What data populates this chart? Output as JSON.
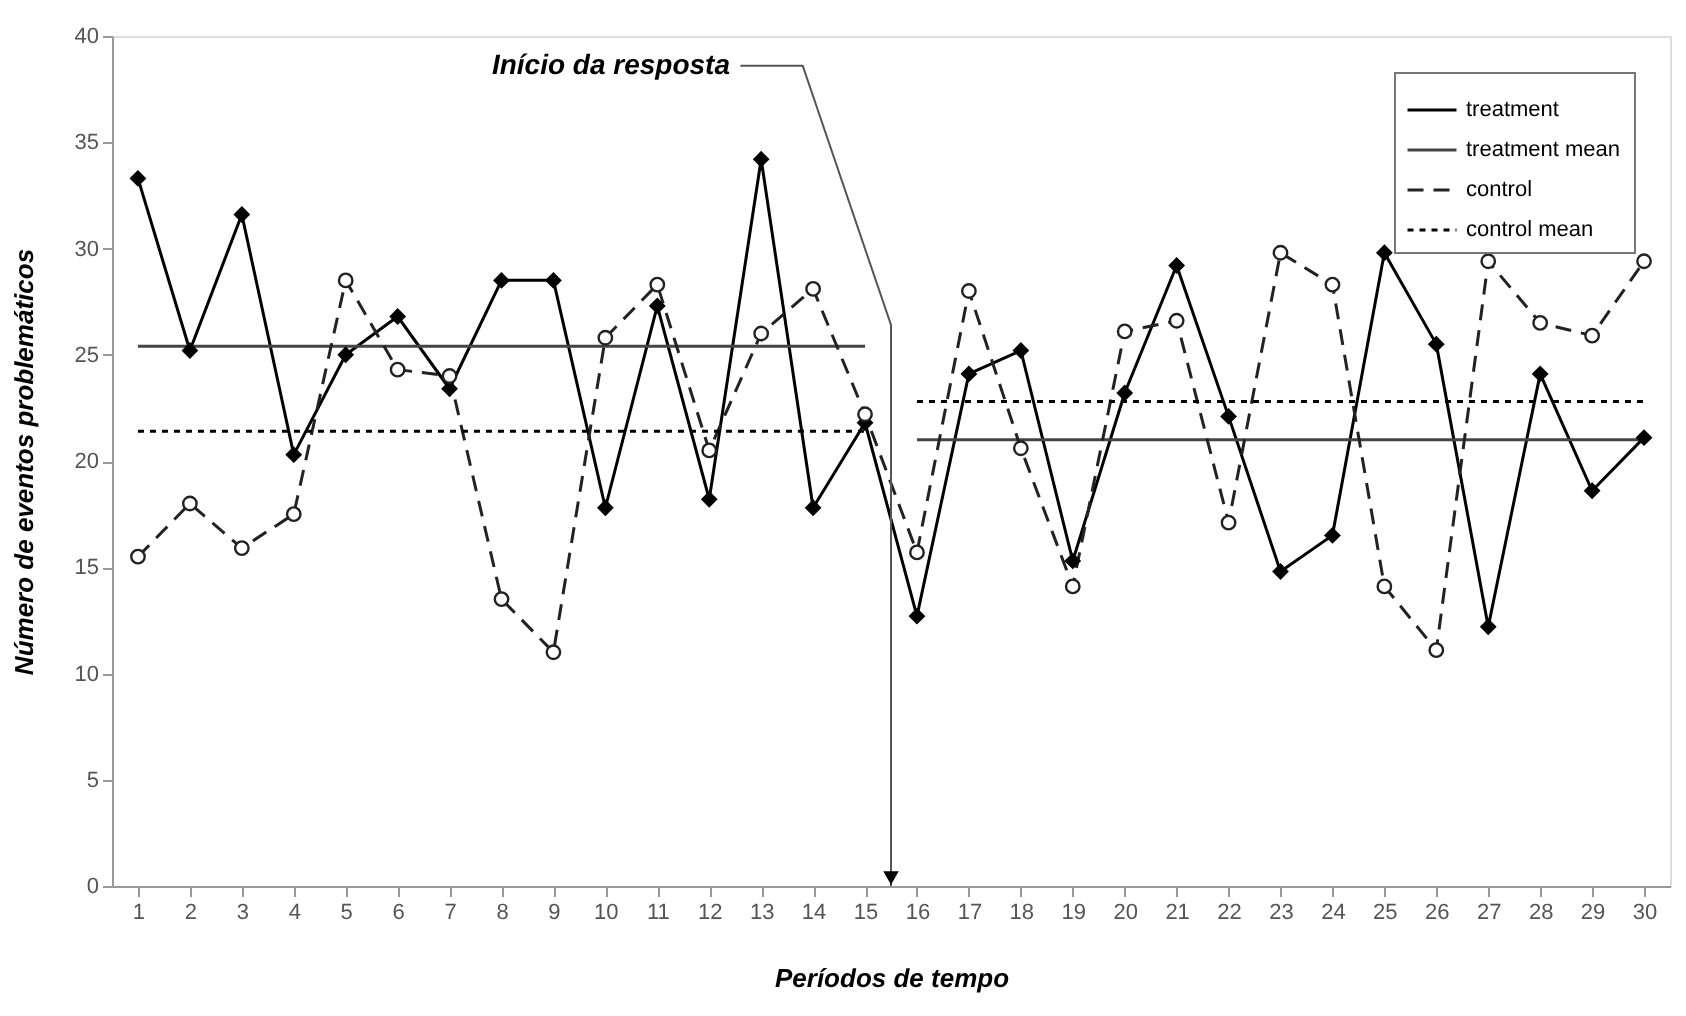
{
  "chart_data": {
    "type": "line",
    "xlabel": "Períodos de tempo",
    "ylabel": "Número de eventos problemáticos",
    "x": [
      1,
      2,
      3,
      4,
      5,
      6,
      7,
      8,
      9,
      10,
      11,
      12,
      13,
      14,
      15,
      16,
      17,
      18,
      19,
      20,
      21,
      22,
      23,
      24,
      25,
      26,
      27,
      28,
      29,
      30
    ],
    "series": [
      {
        "name": "treatment",
        "color": "#000000",
        "line_style": "solid",
        "marker": "diamond",
        "values": [
          33.3,
          25.2,
          31.6,
          20.3,
          25.0,
          26.8,
          23.4,
          28.5,
          28.5,
          17.8,
          27.3,
          18.2,
          34.2,
          17.8,
          21.8,
          12.7,
          24.1,
          25.2,
          15.3,
          23.2,
          29.2,
          22.1,
          14.8,
          16.5,
          29.8,
          25.5,
          12.2,
          24.1,
          18.6,
          21.1
        ]
      },
      {
        "name": "treatment mean",
        "color": "#444444",
        "line_style": "solid",
        "marker": "none",
        "x": [
          1,
          15,
          15.5,
          16,
          30
        ],
        "values": [
          25.4,
          25.4,
          null,
          21.0,
          21.0
        ]
      },
      {
        "name": "control",
        "color": "#222222",
        "line_style": "dashed",
        "marker": "circle",
        "values": [
          15.5,
          18.0,
          15.9,
          17.5,
          28.5,
          24.3,
          24.0,
          13.5,
          11.0,
          25.8,
          28.3,
          20.5,
          26.0,
          28.1,
          22.2,
          15.7,
          28.0,
          20.6,
          14.1,
          26.1,
          26.6,
          17.1,
          29.8,
          28.3,
          14.1,
          11.1,
          29.4,
          26.5,
          25.9,
          29.4
        ]
      },
      {
        "name": "control mean",
        "color": "#000000",
        "line_style": "dotted",
        "marker": "none",
        "x": [
          1,
          15,
          15.5,
          16,
          30
        ],
        "values": [
          21.4,
          21.4,
          null,
          22.8,
          22.8
        ]
      }
    ],
    "annotations": [
      "Início da resposta"
    ],
    "xlim": [
      0.5,
      30.5
    ],
    "xticks": [
      1,
      2,
      3,
      4,
      5,
      6,
      7,
      8,
      9,
      10,
      11,
      12,
      13,
      14,
      15,
      16,
      17,
      18,
      19,
      20,
      21,
      22,
      23,
      24,
      25,
      26,
      27,
      28,
      29,
      30
    ],
    "ylim": [
      0,
      40
    ],
    "yticks": [
      0,
      5,
      10,
      15,
      20,
      25,
      30,
      35,
      40
    ],
    "grid": false,
    "legend": "top right"
  }
}
